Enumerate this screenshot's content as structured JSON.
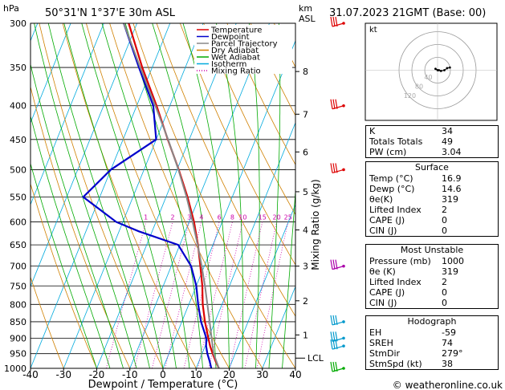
{
  "header": {
    "hpa_label": "hPa",
    "location": "50°31'N  1°37'E  30m  ASL",
    "km_label": "km",
    "asl_label": "ASL",
    "datetime": "31.07.2023  21GMT  (Base: 00)"
  },
  "axes": {
    "xlabel": "Dewpoint / Temperature (°C)",
    "mixing_ratio_label": "Mixing Ratio (g/kg)",
    "x_ticks": [
      "-40",
      "-30",
      "-20",
      "-10",
      "0",
      "10",
      "20",
      "30",
      "40"
    ],
    "p_ticks": [
      "300",
      "350",
      "400",
      "450",
      "500",
      "550",
      "600",
      "650",
      "700",
      "750",
      "800",
      "850",
      "900",
      "950",
      "1000"
    ],
    "km_ticks": [
      {
        "label": "8",
        "p": 355
      },
      {
        "label": "7",
        "p": 412
      },
      {
        "label": "6",
        "p": 470
      },
      {
        "label": "5",
        "p": 540
      },
      {
        "label": "4",
        "p": 617
      },
      {
        "label": "3",
        "p": 700
      },
      {
        "label": "2",
        "p": 790
      },
      {
        "label": "1",
        "p": 890
      }
    ],
    "lcl_label": "LCL",
    "mixing_ratio_values": [
      "1",
      "2",
      "3",
      "4",
      "6",
      "8",
      "10",
      "15",
      "20",
      "25"
    ]
  },
  "legend": [
    {
      "name": "Temperature",
      "color": "#dd0000"
    },
    {
      "name": "Dewpoint",
      "color": "#0000cc"
    },
    {
      "name": "Parcel Trajectory",
      "color": "#888888"
    },
    {
      "name": "Dry Adiabat",
      "color": "#d08000"
    },
    {
      "name": "Wet Adiabat",
      "color": "#00aa00"
    },
    {
      "name": "Isotherm",
      "color": "#00aadd"
    },
    {
      "name": "Mixing Ratio",
      "color": "#cc00aa"
    }
  ],
  "chart_data": {
    "type": "skew-t",
    "title": "50°31'N 1°37'E 30m ASL",
    "xlabel": "Dewpoint / Temperature (°C)",
    "ylabel": "hPa",
    "xlim": [
      -40,
      40
    ],
    "plim": [
      300,
      1000
    ],
    "series": [
      {
        "name": "Temperature",
        "color": "#dd0000",
        "p": [
          1000,
          975,
          950,
          925,
          900,
          850,
          800,
          750,
          700,
          650,
          600,
          550,
          500,
          450,
          400,
          350,
          300
        ],
        "t": [
          16.9,
          15.0,
          13.2,
          11.5,
          10.0,
          7.0,
          4.2,
          1.8,
          -1.2,
          -4.5,
          -8.5,
          -13.5,
          -19.5,
          -26.5,
          -34.0,
          -43.0,
          -52.5
        ]
      },
      {
        "name": "Dewpoint",
        "color": "#0000cc",
        "p": [
          1000,
          975,
          950,
          925,
          900,
          850,
          800,
          750,
          700,
          650,
          620,
          600,
          550,
          500,
          450,
          400,
          350,
          300
        ],
        "t": [
          14.6,
          13.2,
          11.6,
          10.3,
          9.4,
          5.8,
          2.8,
          0.0,
          -4.0,
          -10.5,
          -24.0,
          -32.0,
          -45.0,
          -40.0,
          -30.0,
          -35.0,
          -44.0,
          -54.0
        ]
      },
      {
        "name": "Parcel Trajectory",
        "color": "#888888",
        "p": [
          1000,
          950,
          900,
          850,
          800,
          750,
          700,
          650,
          600,
          550,
          500,
          450,
          400,
          350,
          300
        ],
        "t": [
          16.9,
          13.5,
          11.0,
          8.4,
          5.6,
          2.6,
          -0.8,
          -4.6,
          -8.9,
          -13.8,
          -19.6,
          -26.4,
          -34.4,
          -43.6,
          -54.0
        ]
      }
    ],
    "lcl_p": 965,
    "wind_barbs": [
      {
        "p": 300,
        "color": "#dd0000"
      },
      {
        "p": 400,
        "color": "#dd0000"
      },
      {
        "p": 500,
        "color": "#dd0000"
      },
      {
        "p": 700,
        "color": "#aa00aa"
      },
      {
        "p": 850,
        "color": "#0099cc"
      },
      {
        "p": 900,
        "color": "#0099cc"
      },
      {
        "p": 925,
        "color": "#0099cc"
      },
      {
        "p": 1000,
        "color": "#00aa00"
      }
    ],
    "hodograph": {
      "label": "kt",
      "ring_labels": [
        "40",
        "80",
        "120"
      ],
      "points": [
        [
          0,
          0
        ],
        [
          -3,
          2
        ],
        [
          2,
          0
        ],
        [
          5,
          -1
        ],
        [
          10,
          0
        ],
        [
          14,
          3
        ],
        [
          18,
          4
        ]
      ]
    }
  },
  "indices": {
    "k_label": "K",
    "k": "34",
    "tt_label": "Totals Totals",
    "tt": "49",
    "pw_label": "PW (cm)",
    "pw": "3.04"
  },
  "surface": {
    "title": "Surface",
    "temp_label": "Temp (°C)",
    "temp": "16.9",
    "dewp_label": "Dewp (°C)",
    "dewp": "14.6",
    "theta_label": "θe(K)",
    "theta": "319",
    "li_label": "Lifted Index",
    "li": "2",
    "cape_label": "CAPE (J)",
    "cape": "0",
    "cin_label": "CIN (J)",
    "cin": "0"
  },
  "most_unstable": {
    "title": "Most Unstable",
    "pres_label": "Pressure (mb)",
    "pres": "1000",
    "theta_label": "θe (K)",
    "theta": "319",
    "li_label": "Lifted Index",
    "li": "2",
    "cape_label": "CAPE (J)",
    "cape": "0",
    "cin_label": "CIN (J)",
    "cin": "0"
  },
  "hodograph_table": {
    "title": "Hodograph",
    "eh_label": "EH",
    "eh": "-59",
    "sreh_label": "SREH",
    "sreh": "74",
    "stmdir_label": "StmDir",
    "stmdir": "279°",
    "stmspd_label": "StmSpd (kt)",
    "stmspd": "38"
  },
  "footer": {
    "copyright": "© weatheronline.co.uk"
  }
}
